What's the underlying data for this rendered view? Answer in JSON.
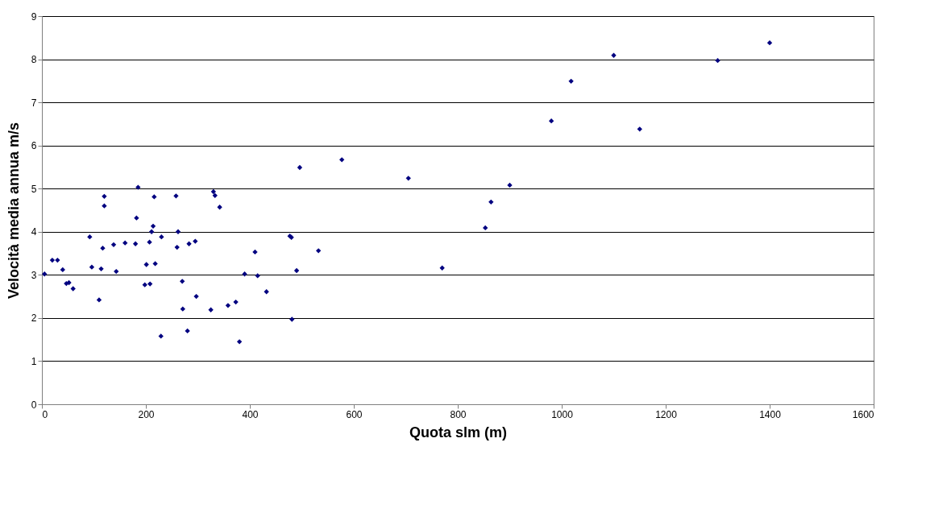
{
  "chart_data": {
    "type": "scatter",
    "xlabel": "Quota slm (m)",
    "ylabel": "Velocità media annua m/s",
    "xlim": [
      0,
      1600
    ],
    "xticks": [
      0,
      200,
      400,
      600,
      800,
      1000,
      1200,
      1400,
      1600
    ],
    "ylim": [
      0,
      9
    ],
    "yticks": [
      0,
      1,
      2,
      3,
      4,
      5,
      6,
      7,
      8,
      9
    ],
    "grid": "y",
    "marker": "diamond",
    "series": [
      {
        "color": "#000080",
        "x": [
          5,
          20,
          30,
          40,
          47,
          52,
          60,
          92,
          96,
          110,
          114,
          117,
          120,
          120,
          138,
          143,
          160,
          180,
          182,
          185,
          198,
          201,
          207,
          208,
          211,
          214,
          216,
          218,
          229,
          230,
          258,
          260,
          262,
          270,
          271,
          280,
          283,
          295,
          297,
          325,
          330,
          333,
          342,
          358,
          373,
          380,
          390,
          410,
          415,
          432,
          477,
          480,
          481,
          490,
          496,
          532,
          577,
          705,
          770,
          853,
          864,
          900,
          980,
          1018,
          1100,
          1150,
          1300,
          1400
        ],
        "values": [
          3.02,
          3.34,
          3.34,
          3.12,
          2.8,
          2.82,
          2.68,
          3.88,
          3.18,
          2.42,
          3.14,
          3.62,
          4.82,
          4.6,
          3.7,
          3.08,
          3.74,
          3.72,
          4.32,
          5.03,
          2.77,
          3.24,
          3.76,
          2.79,
          4.0,
          4.13,
          4.81,
          3.26,
          1.58,
          3.88,
          4.83,
          3.64,
          4.0,
          2.85,
          2.21,
          1.7,
          3.72,
          3.78,
          2.5,
          2.19,
          4.93,
          4.84,
          4.57,
          2.29,
          2.37,
          1.45,
          3.02,
          3.53,
          2.98,
          2.61,
          3.9,
          3.87,
          1.97,
          3.1,
          5.49,
          3.56,
          5.67,
          5.24,
          3.16,
          4.09,
          4.69,
          5.08,
          6.57,
          7.49,
          8.09,
          6.38,
          7.97,
          8.38
        ]
      }
    ]
  }
}
